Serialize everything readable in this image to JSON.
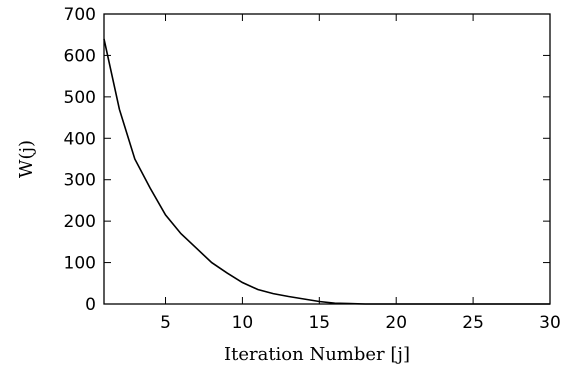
{
  "chart_data": {
    "type": "line",
    "title": "",
    "xlabel": "Iteration Number [j]",
    "ylabel": "W(j)",
    "xlim": [
      1,
      30
    ],
    "ylim": [
      0,
      700
    ],
    "xticks": [
      5,
      10,
      15,
      20,
      25,
      30
    ],
    "xtick_labels": [
      "5",
      "10",
      "15",
      "20",
      "25",
      "30"
    ],
    "yticks": [
      0,
      100,
      200,
      300,
      400,
      500,
      600,
      700
    ],
    "ytick_labels": [
      "0",
      "100",
      "200",
      "300",
      "400",
      "500",
      "600",
      "700"
    ],
    "grid": false,
    "legend": "none",
    "series": [
      {
        "x": [
          1,
          2,
          3,
          4,
          5,
          6,
          7,
          8,
          9,
          10,
          11,
          12,
          13,
          14,
          15,
          16,
          17,
          18,
          19,
          20,
          21,
          22,
          23,
          24,
          25,
          26,
          27,
          28,
          29,
          30
        ],
        "values": [
          640,
          470,
          350,
          280,
          215,
          170,
          135,
          100,
          75,
          52,
          35,
          25,
          18,
          12,
          6,
          2,
          1,
          0,
          0,
          0,
          0,
          0,
          0,
          0,
          0,
          0,
          0,
          0,
          0,
          0
        ],
        "color": "#000000"
      }
    ]
  }
}
